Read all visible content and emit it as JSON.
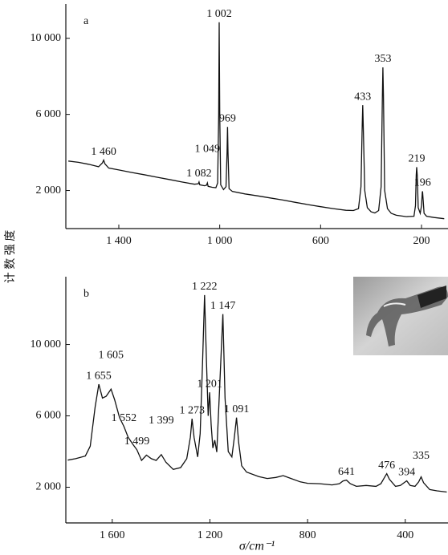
{
  "chart_data": [
    {
      "type": "line",
      "panel_label": "a",
      "ylabel": "计 数 强 度",
      "color": "#111111",
      "xlim": [
        1610,
        95
      ],
      "ylim": [
        0,
        11800
      ],
      "xticks": [
        {
          "value": 1400,
          "label": "1 400"
        },
        {
          "value": 1000,
          "label": "1 000"
        },
        600,
        200
      ],
      "yticks": [
        {
          "value": 2000,
          "label": "2 000"
        },
        {
          "value": 6000,
          "label": "6 000"
        },
        {
          "value": 10000,
          "label": "10 000"
        }
      ],
      "x": [
        1600,
        1560,
        1520,
        1480,
        1465,
        1460,
        1455,
        1440,
        1400,
        1350,
        1300,
        1250,
        1200,
        1150,
        1100,
        1085,
        1082,
        1079,
        1060,
        1052,
        1049,
        1046,
        1030,
        1015,
        1008,
        1004,
        1002,
        1000,
        996,
        985,
        975,
        971,
        969,
        967,
        963,
        950,
        900,
        850,
        800,
        750,
        700,
        650,
        600,
        550,
        500,
        470,
        450,
        440,
        435,
        433,
        431,
        425,
        415,
        400,
        385,
        370,
        360,
        355,
        353,
        351,
        346,
        335,
        320,
        300,
        260,
        230,
        224,
        221,
        219,
        217,
        213,
        205,
        200,
        197,
        196,
        194,
        190,
        180,
        150,
        110
      ],
      "values": [
        3550,
        3480,
        3380,
        3250,
        3450,
        3600,
        3400,
        3180,
        3080,
        2950,
        2830,
        2700,
        2580,
        2450,
        2330,
        2350,
        2450,
        2300,
        2250,
        2280,
        2400,
        2220,
        2170,
        2150,
        2400,
        6000,
        10840,
        6000,
        2300,
        2050,
        2200,
        4000,
        5340,
        4000,
        2100,
        1950,
        1820,
        1720,
        1610,
        1500,
        1380,
        1260,
        1150,
        1050,
        960,
        950,
        1050,
        2200,
        5500,
        6480,
        5500,
        2000,
        1100,
        880,
        820,
        950,
        2200,
        7000,
        8470,
        7000,
        2000,
        1050,
        800,
        700,
        630,
        650,
        1200,
        2800,
        3230,
        2800,
        1100,
        800,
        1200,
        1900,
        1960,
        1600,
        800,
        650,
        580,
        520
      ],
      "annotations": [
        {
          "value": 1460,
          "label": "1 460"
        },
        {
          "value": 1002,
          "label": "1 002"
        },
        {
          "value": 969,
          "label": "969"
        },
        {
          "value": 1082,
          "label": "1 082"
        },
        {
          "value": 1049,
          "label": "1 049"
        },
        {
          "value": 433,
          "label": "433"
        },
        {
          "value": 353,
          "label": "353"
        },
        {
          "value": 219,
          "label": "219"
        },
        {
          "value": 196,
          "label": "196"
        }
      ]
    },
    {
      "type": "line",
      "panel_label": "b",
      "xlabel": "σ/cm⁻¹",
      "color": "#111111",
      "xlim": [
        1790,
        225
      ],
      "ylim": [
        0,
        13800
      ],
      "xticks": [
        {
          "value": 1600,
          "label": "1 600"
        },
        {
          "value": 1200,
          "label": "1 200"
        },
        800,
        400
      ],
      "yticks": [
        {
          "value": 2000,
          "label": "2 000"
        },
        {
          "value": 6000,
          "label": "6 000"
        },
        {
          "value": 10000,
          "label": "10 000"
        }
      ],
      "x": [
        1782,
        1750,
        1710,
        1690,
        1670,
        1655,
        1640,
        1625,
        1605,
        1590,
        1570,
        1552,
        1535,
        1515,
        1499,
        1480,
        1460,
        1440,
        1420,
        1399,
        1380,
        1350,
        1320,
        1295,
        1280,
        1273,
        1265,
        1250,
        1240,
        1230,
        1222,
        1214,
        1207,
        1201,
        1195,
        1188,
        1180,
        1172,
        1162,
        1147,
        1138,
        1125,
        1110,
        1100,
        1091,
        1082,
        1070,
        1050,
        1000,
        965,
        930,
        900,
        870,
        830,
        800,
        750,
        700,
        670,
        655,
        641,
        625,
        600,
        560,
        520,
        500,
        485,
        476,
        465,
        440,
        420,
        405,
        394,
        380,
        360,
        345,
        335,
        325,
        300,
        270,
        230
      ],
      "values": [
        3520,
        3600,
        3750,
        4300,
        6500,
        7770,
        7000,
        7100,
        7500,
        6900,
        5900,
        5400,
        4800,
        4400,
        4100,
        3500,
        3800,
        3600,
        3500,
        3830,
        3400,
        3000,
        3100,
        3600,
        4800,
        5840,
        4800,
        3700,
        5000,
        9000,
        12770,
        9000,
        6000,
        7320,
        5500,
        4200,
        4640,
        3970,
        7000,
        11700,
        7000,
        4000,
        3700,
        4800,
        5900,
        4500,
        3200,
        2850,
        2600,
        2490,
        2550,
        2650,
        2500,
        2300,
        2220,
        2200,
        2130,
        2200,
        2350,
        2400,
        2200,
        2050,
        2100,
        2050,
        2200,
        2550,
        2760,
        2450,
        2050,
        2100,
        2250,
        2360,
        2100,
        2050,
        2300,
        2580,
        2250,
        1870,
        1800,
        1730
      ],
      "annotations": [
        {
          "value": 1222,
          "label": "1 222"
        },
        {
          "value": 1147,
          "label": "1 147"
        },
        {
          "value": 1201,
          "label": "1 201"
        },
        {
          "value": 1273,
          "label": "1 273"
        },
        {
          "value": 1091,
          "label": "1 091"
        },
        {
          "value": 1655,
          "label": "1 655"
        },
        {
          "value": 1605,
          "label": "1 605"
        },
        {
          "value": 1552,
          "label": "1 552"
        },
        {
          "value": 1499,
          "label": "1 499"
        },
        {
          "value": 1399,
          "label": "1 399"
        },
        {
          "value": 641,
          "label": "641"
        },
        {
          "value": 476,
          "label": "476"
        },
        {
          "value": 394,
          "label": "394"
        },
        {
          "value": 335,
          "label": "335"
        }
      ]
    }
  ]
}
